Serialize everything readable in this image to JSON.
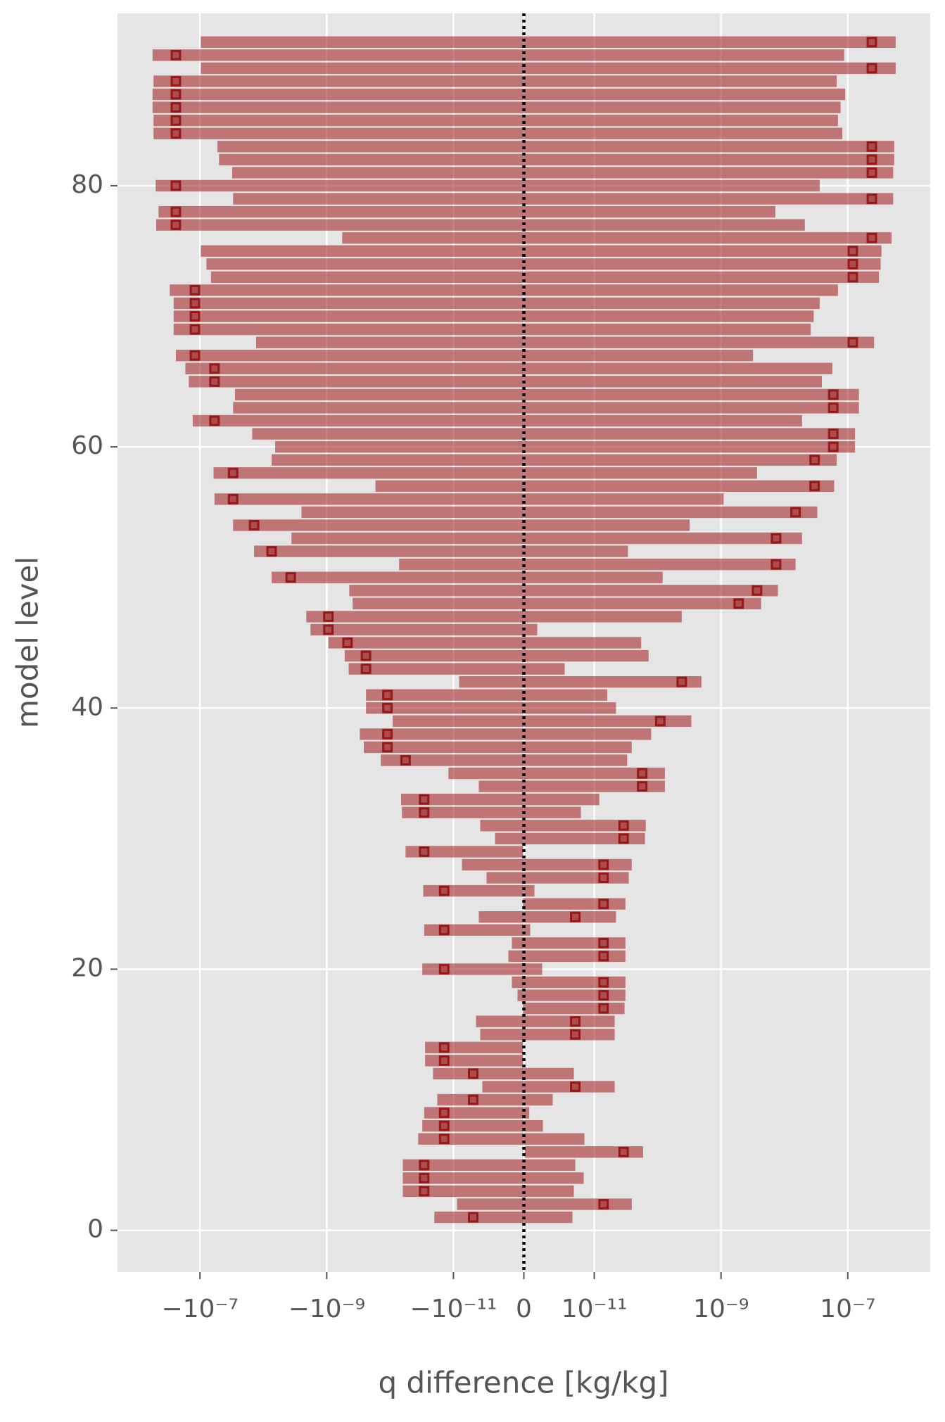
{
  "chart_data": {
    "type": "range-barh",
    "xlabel": "q difference [kg/kg]",
    "ylabel": "model level",
    "xscale": "symlog",
    "linthresh": 1e-11,
    "linscale": 1,
    "xlim": [
      -2e-06,
      2e-06
    ],
    "ylim": [
      93.2,
      -3.2
    ],
    "xticks": [
      {
        "value": -1e-07,
        "label": "−10⁻⁷"
      },
      {
        "value": -1e-09,
        "label": "−10⁻⁹"
      },
      {
        "value": -1e-11,
        "label": "−10⁻¹¹"
      },
      0,
      {
        "value": 1e-11,
        "label": "10⁻¹¹"
      },
      {
        "value": 1e-09,
        "label": "10⁻⁹"
      },
      {
        "value": 1e-07,
        "label": "10⁻⁷"
      }
    ],
    "yticks": [
      0,
      20,
      40,
      60,
      80
    ],
    "grid": true,
    "vline": 0,
    "bar_color": "#a52a2a",
    "bar_alpha": 0.6,
    "marker_color": "#8b0000",
    "y": [
      1,
      2,
      3,
      4,
      5,
      6,
      7,
      8,
      9,
      10,
      11,
      12,
      13,
      14,
      15,
      16,
      17,
      18,
      19,
      20,
      21,
      22,
      23,
      24,
      25,
      26,
      27,
      28,
      29,
      30,
      31,
      32,
      33,
      34,
      35,
      36,
      37,
      38,
      39,
      40,
      41,
      42,
      43,
      44,
      45,
      46,
      47,
      48,
      49,
      50,
      51,
      52,
      53,
      54,
      55,
      56,
      57,
      58,
      59,
      60,
      61,
      62,
      63,
      64,
      65,
      66,
      67,
      68,
      69,
      70,
      71,
      72,
      73,
      74,
      75,
      76,
      77,
      78,
      79,
      80,
      81,
      82,
      83,
      84,
      85,
      86,
      87,
      88,
      89,
      90,
      91
    ],
    "lows": [
      -2e-11,
      -9.5e-12,
      -6.3e-11,
      -6.3e-11,
      -6.3e-11,
      1.3e-13,
      -3.6e-11,
      -3.1e-11,
      -2.9e-11,
      -1.8e-11,
      -5.9e-12,
      -2.1e-11,
      -2.8e-11,
      -2.8e-11,
      -6.2e-12,
      -6.8e-12,
      -1.3e-13,
      -9e-13,
      -1.7e-12,
      -3.1e-11,
      -2.2e-12,
      -1.7e-12,
      -2.9e-11,
      -6.4e-12,
      -1.3e-13,
      -3e-11,
      -5.3e-12,
      -8.8e-12,
      -5.7e-11,
      -4.1e-12,
      -6.2e-12,
      -6.5e-11,
      -6.7e-11,
      -6.4e-12,
      -1.2e-11,
      -1.4e-10,
      -2.6e-10,
      -3e-10,
      -9.1e-11,
      -2.4e-10,
      -2.4e-10,
      -9.2e-12,
      -4.5e-10,
      -5.2e-10,
      -9.4e-10,
      -1.8e-09,
      -2.1e-09,
      -3.9e-10,
      -4.4e-10,
      -7.4e-09,
      -7.2e-11,
      -1.4e-08,
      -3.6e-09,
      -3e-08,
      -2.5e-09,
      -5.9e-08,
      -1.7e-10,
      -6.1e-08,
      -7.4e-09,
      -6.5e-09,
      -1.5e-08,
      -1.3e-07,
      -3e-08,
      -2.8e-08,
      -1.5e-07,
      -1.7e-07,
      -2.4e-07,
      -1.3e-08,
      -2.6e-07,
      -2.6e-07,
      -2.6e-07,
      -3e-07,
      -6.7e-08,
      -7.9e-08,
      -9.7e-08,
      -5.7e-10,
      -4.9e-07,
      -4.5e-07,
      -3e-08,
      -5e-07,
      -3.1e-08,
      -5e-08,
      -5.3e-08,
      -5.4e-07,
      -5.4e-07,
      -5.6e-07,
      -5.6e-07,
      -5.4e-07,
      -9.7e-08,
      -5.6e-07,
      -9.7e-08
    ],
    "highs": [
      6.9e-12,
      3.9e-11,
      7.1e-12,
      8.5e-12,
      7.3e-12,
      5.9e-11,
      8.6e-12,
      2.7e-12,
      7.7e-13,
      4.1e-12,
      2.1e-11,
      7.1e-12,
      -1.3e-13,
      -1.3e-13,
      2.1e-11,
      2.1e-11,
      3e-11,
      3.1e-11,
      3.1e-11,
      2.6e-12,
      3.1e-11,
      3.1e-11,
      9e-13,
      2.2e-11,
      3.1e-11,
      1.5e-12,
      3.5e-11,
      3.9e-11,
      -1.3e-13,
      6.3e-11,
      6.5e-11,
      8.1e-12,
      1.2e-11,
      1.3e-10,
      1.3e-10,
      3.3e-11,
      3.9e-11,
      7.9e-11,
      3.4e-10,
      2.2e-11,
      1.6e-11,
      4.9e-10,
      5.8e-12,
      7.2e-11,
      5.5e-11,
      1.9e-12,
      2.4e-10,
      4.3e-09,
      7.9e-09,
      1.2e-10,
      1.5e-08,
      3.4e-11,
      1.9e-08,
      3.2e-10,
      3.3e-08,
      1.1e-09,
      6.1e-08,
      3.7e-09,
      6.7e-08,
      1.3e-07,
      1.3e-07,
      1.9e-08,
      1.5e-07,
      1.5e-07,
      3.9e-08,
      5.7e-08,
      3.2e-09,
      2.6e-07,
      2.6e-08,
      2.9e-08,
      3.6e-08,
      7e-08,
      3.1e-07,
      3.3e-07,
      3.4e-07,
      4.9e-07,
      2.1e-08,
      7.2e-09,
      5.2e-07,
      3.6e-08,
      5.2e-07,
      5.4e-07,
      5.4e-07,
      8.2e-08,
      7e-08,
      7.7e-08,
      9.1e-08,
      6.7e-08,
      5.7e-07,
      8.8e-08,
      5.7e-07
    ],
    "markers": [
      -7.2e-12,
      1.4e-11,
      -2.9e-11,
      -2.9e-11,
      -2.9e-11,
      2.9e-11,
      -1.4e-11,
      -1.4e-11,
      -1.4e-11,
      -7.2e-12,
      7.3e-12,
      -7.2e-12,
      -1.4e-11,
      -1.4e-11,
      7.3e-12,
      7.3e-12,
      1.4e-11,
      1.4e-11,
      1.4e-11,
      -1.4e-11,
      1.4e-11,
      1.4e-11,
      -1.4e-11,
      7.3e-12,
      1.4e-11,
      -1.4e-11,
      1.4e-11,
      1.4e-11,
      -2.9e-11,
      2.9e-11,
      2.9e-11,
      -2.9e-11,
      -2.9e-11,
      5.7e-11,
      5.7e-11,
      -5.7e-11,
      -1.1e-10,
      -1.1e-10,
      1.1e-10,
      -1.1e-10,
      -1.1e-10,
      2.4e-10,
      -2.4e-10,
      -2.4e-10,
      -4.7e-10,
      -9.4e-10,
      -9.4e-10,
      1.9e-09,
      3.7e-09,
      -3.7e-09,
      7.4e-09,
      -7.4e-09,
      7.4e-09,
      -1.4e-08,
      1.5e-08,
      -3e-08,
      3e-08,
      -3e-08,
      3e-08,
      5.9e-08,
      5.9e-08,
      -5.9e-08,
      5.9e-08,
      5.9e-08,
      -5.9e-08,
      -5.9e-08,
      -1.2e-07,
      1.2e-07,
      -1.2e-07,
      -1.2e-07,
      -1.2e-07,
      -1.2e-07,
      1.2e-07,
      1.2e-07,
      1.2e-07,
      2.4e-07,
      -2.4e-07,
      -2.4e-07,
      2.4e-07,
      -2.4e-07,
      2.4e-07,
      2.4e-07,
      2.4e-07,
      -2.4e-07,
      -2.4e-07,
      -2.4e-07,
      -2.4e-07,
      -2.4e-07,
      2.4e-07,
      -2.4e-07,
      2.4e-07
    ]
  }
}
